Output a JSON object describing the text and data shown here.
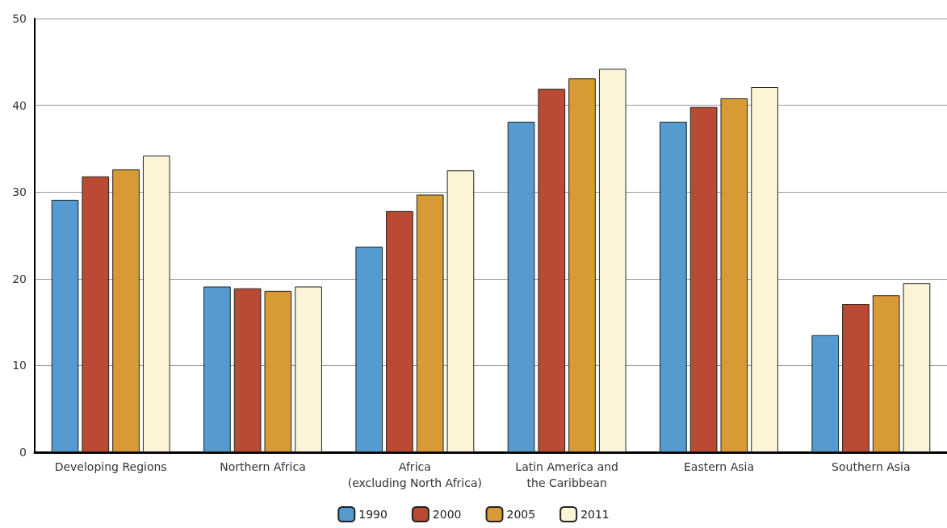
{
  "chart_data": {
    "type": "bar",
    "categories": [
      "Developing Regions",
      "Northern Africa",
      "Africa\n(excluding North Africa)",
      "Latin America and\nthe Caribbean",
      "Eastern Asia",
      "Southern Asia"
    ],
    "series": [
      {
        "name": "1990",
        "color": "#559bcf",
        "values": [
          29.1,
          19.1,
          23.7,
          38.1,
          38.1,
          13.5
        ]
      },
      {
        "name": "2000",
        "color": "#bb4a35",
        "values": [
          31.8,
          18.9,
          27.8,
          41.9,
          39.8,
          17.1
        ]
      },
      {
        "name": "2005",
        "color": "#d89a35",
        "values": [
          32.6,
          18.6,
          29.7,
          43.1,
          40.8,
          18.1
        ]
      },
      {
        "name": "2011",
        "color": "#fcf4d6",
        "values": [
          34.2,
          19.1,
          32.5,
          44.2,
          42.1,
          19.5
        ]
      }
    ],
    "ylim": [
      0,
      50
    ],
    "yticks": [
      0,
      10,
      20,
      30,
      40,
      50
    ],
    "grid": "y",
    "legend": "bottom"
  }
}
